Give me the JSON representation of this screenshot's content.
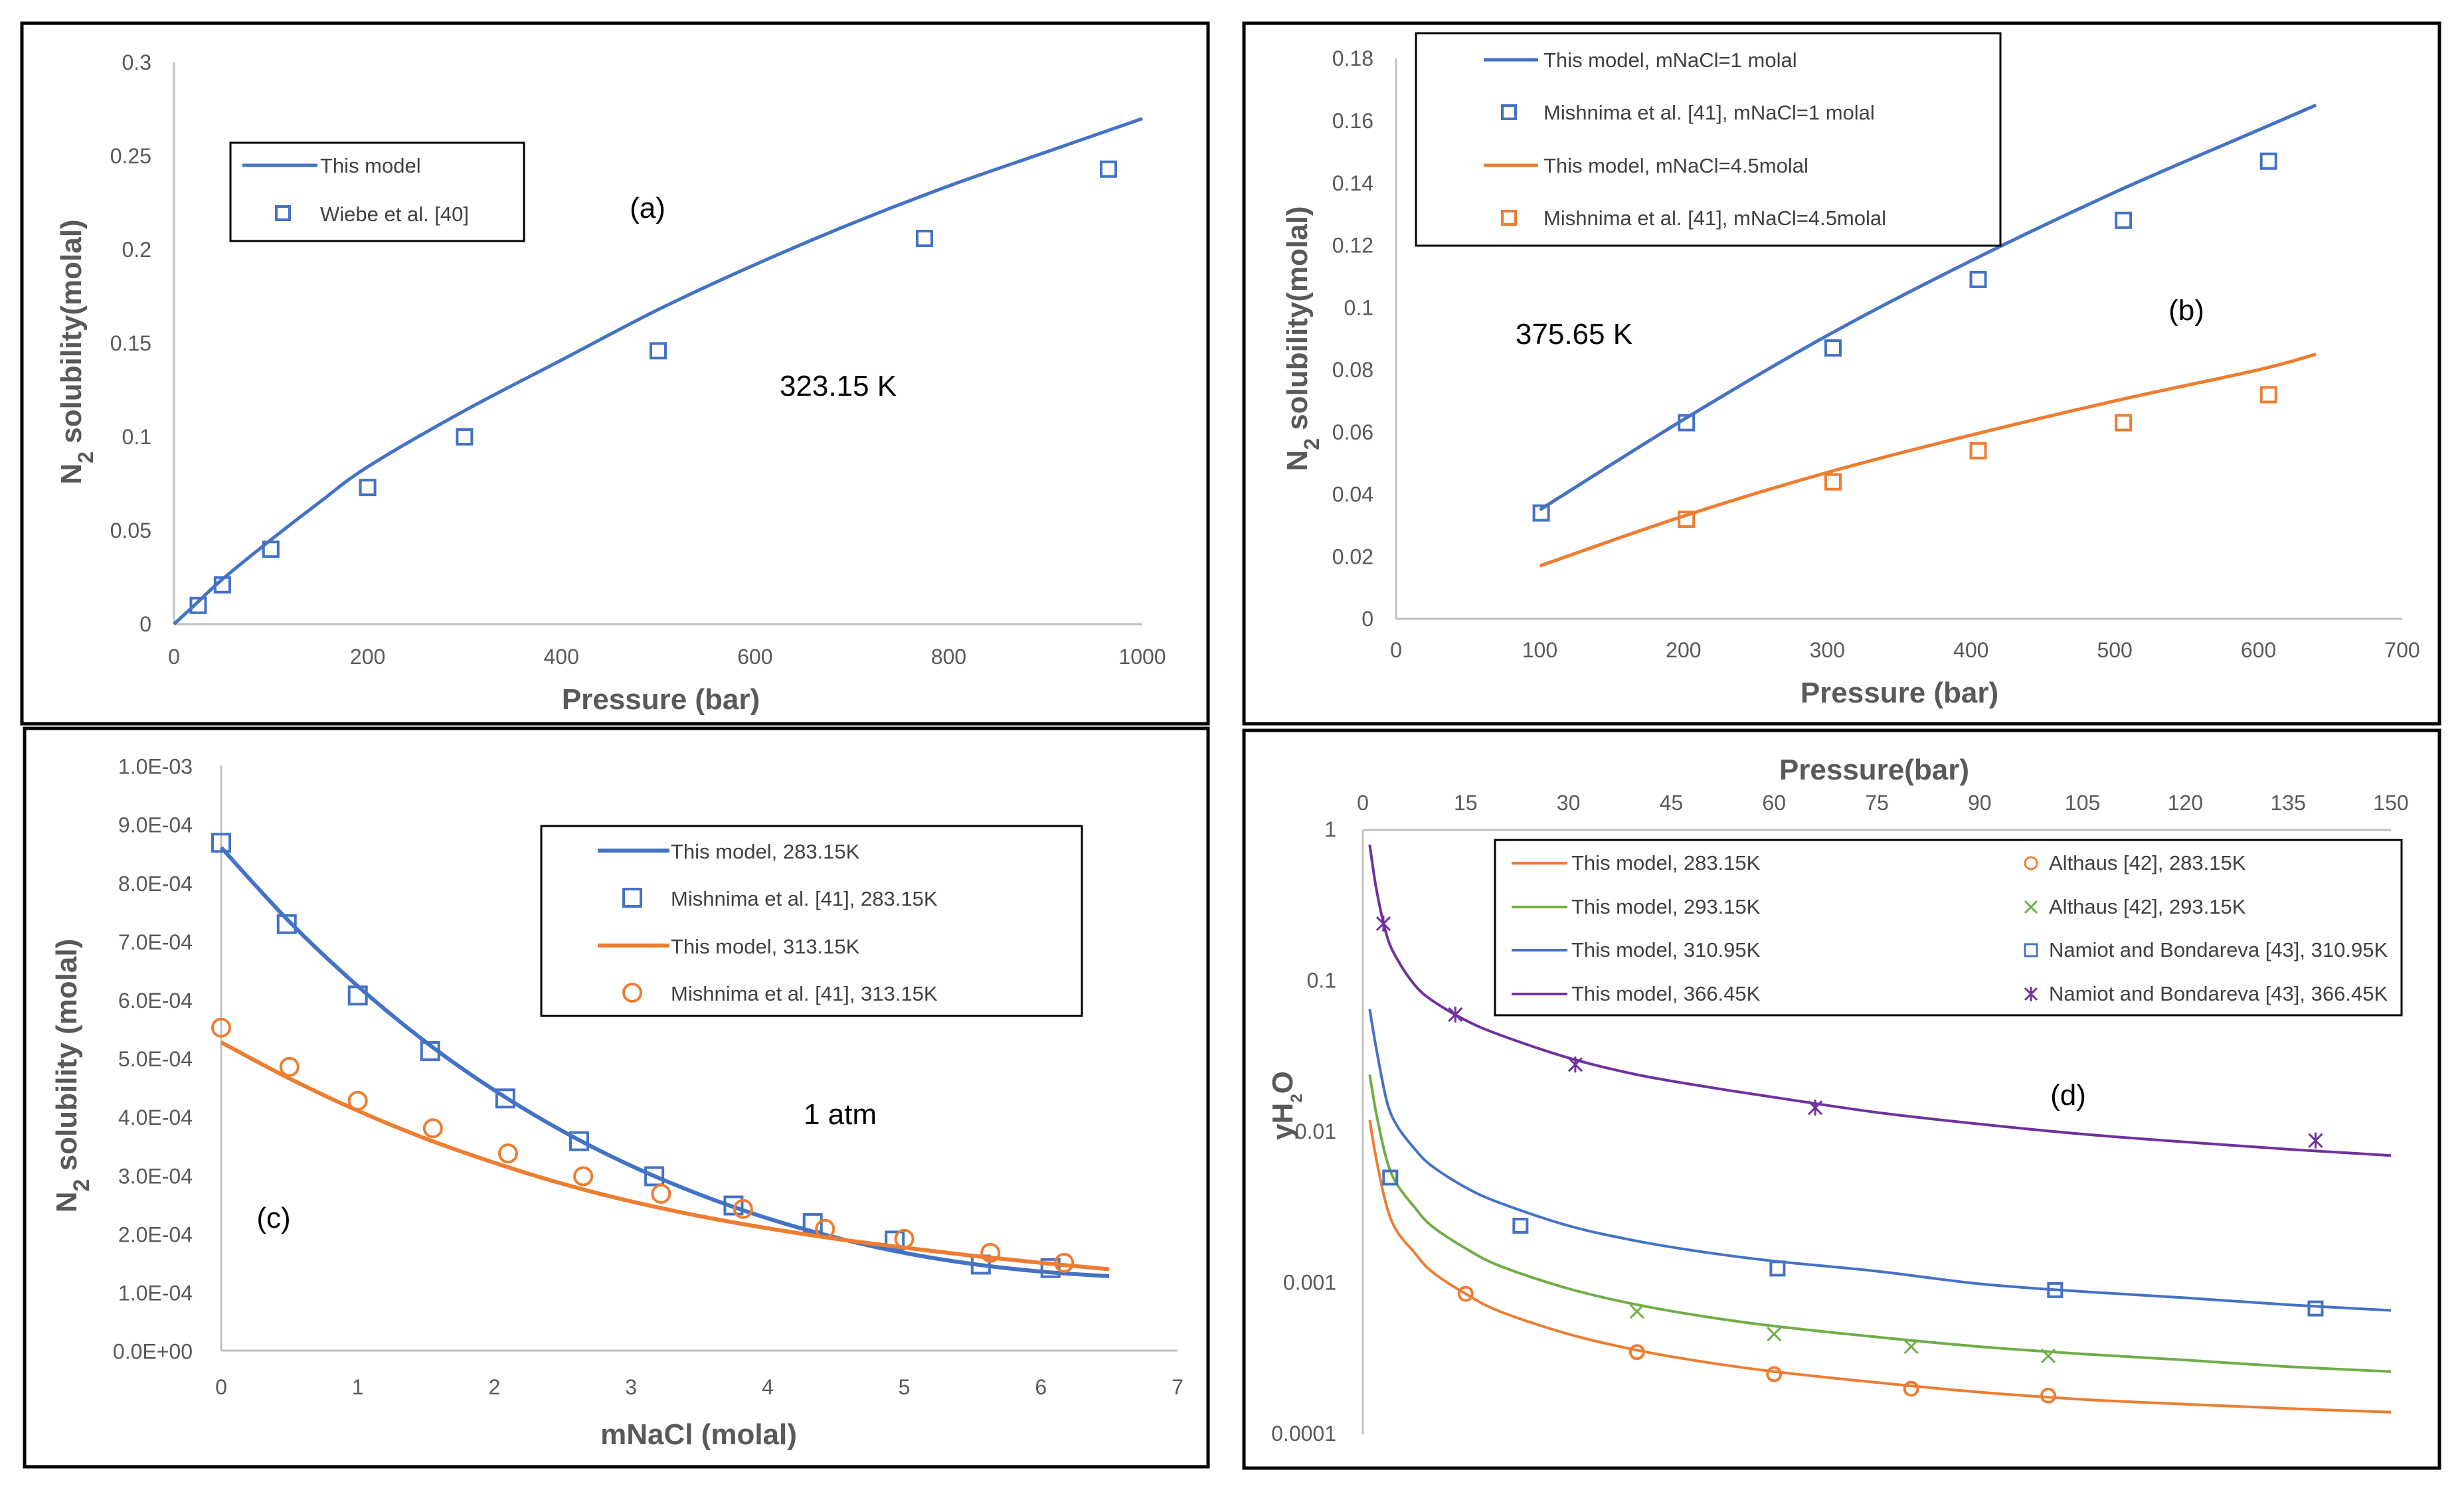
{
  "colors": {
    "blue": "#4472c4",
    "orange": "#ed7d31",
    "green": "#70ad47",
    "purple": "#7030a0",
    "axis": "#bfbfbf",
    "text": "#595959",
    "border": "#000000"
  },
  "chart_data": [
    {
      "id": "a",
      "type": "scatter",
      "panel_label": "(a)",
      "annotation": "323.15 K",
      "xlabel": "Pressure (bar)",
      "ylabel": "N2 solubility(molal)",
      "ylabel_parts": {
        "base": "N",
        "sub": "2",
        "rest": " solubility(molal)"
      },
      "xlim": [
        0,
        1000
      ],
      "ylim": [
        0,
        0.3
      ],
      "x_ticks": [
        0,
        200,
        400,
        600,
        800,
        1000
      ],
      "x_tick_labels": [
        "0",
        "200",
        "400",
        "600",
        "800",
        "1000"
      ],
      "y_ticks": [
        0,
        0.05,
        0.1,
        0.15,
        0.2,
        0.25,
        0.3
      ],
      "y_tick_labels": [
        "0",
        "0.05",
        "0.1",
        "0.15",
        "0.2",
        "0.25",
        "0.3"
      ],
      "legend_position": "top-left",
      "series": [
        {
          "name": "This model",
          "kind": "line",
          "color": "#4472c4",
          "x": [
            0,
            25,
            50,
            100,
            150,
            200,
            300,
            400,
            500,
            600,
            700,
            800,
            900,
            1000
          ],
          "y": [
            0,
            0.012,
            0.024,
            0.045,
            0.065,
            0.084,
            0.114,
            0.141,
            0.168,
            0.192,
            0.214,
            0.234,
            0.252,
            0.27
          ]
        },
        {
          "name": "Wiebe et al. [40]",
          "kind": "marker",
          "marker": "square",
          "color": "#4472c4",
          "x": [
            25,
            50,
            100,
            200,
            300,
            500,
            775,
            965
          ],
          "y": [
            0.01,
            0.021,
            0.04,
            0.073,
            0.1,
            0.146,
            0.206,
            0.243
          ]
        }
      ]
    },
    {
      "id": "b",
      "type": "scatter",
      "panel_label": "(b)",
      "annotation": "375.65 K",
      "xlabel": "Pressure (bar)",
      "ylabel": "N2 solubility(molal)",
      "ylabel_parts": {
        "base": "N",
        "sub": "2",
        "rest": " solubility(molal)"
      },
      "xlim": [
        0,
        700
      ],
      "ylim": [
        0,
        0.18
      ],
      "x_ticks": [
        0,
        100,
        200,
        300,
        400,
        500,
        600,
        700
      ],
      "x_tick_labels": [
        "0",
        "100",
        "200",
        "300",
        "400",
        "500",
        "600",
        "700"
      ],
      "y_ticks": [
        0,
        0.02,
        0.04,
        0.06,
        0.08,
        0.1,
        0.12,
        0.14,
        0.16,
        0.18
      ],
      "y_tick_labels": [
        "0",
        "0.02",
        "0.04",
        "0.06",
        "0.08",
        "0.1",
        "0.12",
        "0.14",
        "0.16",
        "0.18"
      ],
      "legend_position": "top-left",
      "series": [
        {
          "name": "This model, mNaCl=1 molal",
          "kind": "line",
          "color": "#4472c4",
          "x": [
            100,
            200,
            300,
            400,
            500,
            600,
            640
          ],
          "y": [
            0.035,
            0.064,
            0.091,
            0.115,
            0.137,
            0.157,
            0.165
          ]
        },
        {
          "name": "Mishnima et al. [41], mNaCl=1 molal",
          "kind": "marker",
          "marker": "square",
          "color": "#4472c4",
          "x": [
            101,
            202,
            304,
            405,
            506,
            607
          ],
          "y": [
            0.034,
            0.063,
            0.087,
            0.109,
            0.128,
            0.147
          ]
        },
        {
          "name": "This model, mNaCl=4.5molal",
          "kind": "line",
          "color": "#ed7d31",
          "x": [
            100,
            200,
            300,
            400,
            500,
            600,
            640
          ],
          "y": [
            0.017,
            0.033,
            0.047,
            0.059,
            0.07,
            0.08,
            0.085
          ]
        },
        {
          "name": "Mishnima et al. [41], mNaCl=4.5molal",
          "kind": "marker",
          "marker": "square",
          "color": "#ed7d31",
          "x": [
            202,
            304,
            405,
            506,
            607
          ],
          "y": [
            0.032,
            0.044,
            0.054,
            0.063,
            0.072
          ]
        }
      ]
    },
    {
      "id": "c",
      "type": "scatter",
      "panel_label": "(c)",
      "annotation": "1 atm",
      "xlabel": "mNaCl (molal)",
      "ylabel": "N2 solubility (molal)",
      "ylabel_parts": {
        "base": "N",
        "sub": "2",
        "rest": " solubility (molal)"
      },
      "xlim": [
        0,
        7
      ],
      "ylim": [
        0,
        0.001
      ],
      "x_ticks": [
        0,
        1,
        2,
        3,
        4,
        5,
        6,
        7
      ],
      "x_tick_labels": [
        "0",
        "1",
        "2",
        "3",
        "4",
        "5",
        "6",
        "7"
      ],
      "y_ticks": [
        0,
        0.0001,
        0.0002,
        0.0003,
        0.0004,
        0.0005,
        0.0006,
        0.0007,
        0.0008,
        0.0009,
        0.001
      ],
      "y_tick_labels": [
        "0.0E+00",
        "1.0E-04",
        "2.0E-04",
        "3.0E-04",
        "4.0E-04",
        "5.0E-04",
        "6.0E-04",
        "7.0E-04",
        "8.0E-04",
        "9.0E-04",
        "1.0E-03"
      ],
      "legend_position": "top-right",
      "series": [
        {
          "name": "This model, 283.15K",
          "kind": "line",
          "color": "#4472c4",
          "x": [
            0,
            0.5,
            1,
            1.5,
            2,
            2.5,
            3,
            3.5,
            4,
            4.5,
            5,
            5.5,
            6,
            6.5
          ],
          "y": [
            0.00086,
            0.000733,
            0.000623,
            0.000527,
            0.000445,
            0.000375,
            0.000316,
            0.000267,
            0.000226,
            0.000193,
            0.000167,
            0.000148,
            0.000135,
            0.000127
          ]
        },
        {
          "name": "Mishnima et al. [41], 283.15K",
          "kind": "marker",
          "marker": "square",
          "color": "#4472c4",
          "x": [
            0,
            0.48,
            1.0,
            1.53,
            2.08,
            2.62,
            3.17,
            3.75,
            4.33,
            4.93,
            5.56,
            6.07
          ],
          "y": [
            0.000868,
            0.000729,
            0.000607,
            0.000512,
            0.000431,
            0.000358,
            0.000298,
            0.000248,
            0.000218,
            0.000188,
            0.000147,
            0.000141
          ]
        },
        {
          "name": "This model, 313.15K",
          "kind": "line",
          "color": "#ed7d31",
          "x": [
            0,
            0.5,
            1,
            1.5,
            2,
            2.5,
            3,
            3.5,
            4,
            4.5,
            5,
            5.5,
            6,
            6.5
          ],
          "y": [
            0.000527,
            0.000465,
            0.00041,
            0.000362,
            0.000321,
            0.000285,
            0.000255,
            0.00023,
            0.000209,
            0.000191,
            0.000176,
            0.000162,
            0.00015,
            0.000139
          ]
        },
        {
          "name": "Mishnima et al. [41], 313.15K",
          "kind": "marker",
          "marker": "circle",
          "color": "#ed7d31",
          "x": [
            0,
            0.5,
            1.0,
            1.55,
            2.1,
            2.65,
            3.22,
            3.82,
            4.42,
            5.0,
            5.63,
            6.17
          ],
          "y": [
            0.000552,
            0.000485,
            0.000427,
            0.00038,
            0.000337,
            0.000298,
            0.000268,
            0.000242,
            0.000208,
            0.000191,
            0.000167,
            0.00015
          ]
        }
      ]
    },
    {
      "id": "d",
      "type": "scatter",
      "panel_label": "(d)",
      "xlabel": "Pressure(bar)",
      "ylabel": "yH2O",
      "ylabel_parts": {
        "base": "yH",
        "sub": "2",
        "rest": "O"
      },
      "y_scale": "log",
      "xlim": [
        0,
        150
      ],
      "ylim": [
        0.0001,
        1
      ],
      "x_axis_position": "top",
      "x_ticks": [
        0,
        15,
        30,
        45,
        60,
        75,
        90,
        105,
        120,
        135,
        150
      ],
      "x_tick_labels": [
        "0",
        "15",
        "30",
        "45",
        "60",
        "75",
        "90",
        "105",
        "120",
        "135",
        "150"
      ],
      "y_ticks": [
        0.0001,
        0.001,
        0.01,
        0.1,
        1
      ],
      "y_tick_labels": [
        "0.0001",
        "0.001",
        "0.01",
        "0.1",
        "1"
      ],
      "legend_position": "top-right",
      "legend_columns": 2,
      "series": [
        {
          "name": "This model, 283.15K",
          "kind": "line",
          "color": "#ed7d31",
          "x": [
            1,
            2,
            3.5,
            5,
            7.5,
            10,
            15,
            20,
            30,
            40,
            50,
            60,
            75,
            90,
            105,
            120,
            135,
            150
          ],
          "y": [
            0.012,
            0.0065,
            0.0032,
            0.0022,
            0.0016,
            0.0012,
            0.00085,
            0.00065,
            0.00046,
            0.00036,
            0.0003,
            0.00026,
            0.00022,
            0.00019,
            0.00017,
            0.000158,
            0.000148,
            0.00014
          ]
        },
        {
          "name": "This model, 293.15K",
          "kind": "line",
          "color": "#70ad47",
          "x": [
            1,
            2,
            3.5,
            5,
            7.5,
            10,
            15,
            20,
            30,
            40,
            50,
            60,
            75,
            90,
            105,
            120,
            135,
            150
          ],
          "y": [
            0.024,
            0.013,
            0.0065,
            0.0045,
            0.0032,
            0.0024,
            0.0017,
            0.0013,
            0.00092,
            0.00072,
            0.0006,
            0.00052,
            0.00044,
            0.00038,
            0.00034,
            0.00031,
            0.00028,
            0.00026
          ]
        },
        {
          "name": "This model, 310.95K",
          "kind": "line",
          "color": "#4472c4",
          "x": [
            1,
            2,
            3.5,
            5,
            7.5,
            10,
            15,
            20,
            30,
            40,
            50,
            60,
            75,
            90,
            105,
            120,
            135,
            150
          ],
          "y": [
            0.065,
            0.035,
            0.016,
            0.011,
            0.0078,
            0.006,
            0.0043,
            0.0034,
            0.0024,
            0.0019,
            0.0016,
            0.0014,
            0.0012,
            0.00099,
            0.00088,
            0.0008,
            0.00072,
            0.00066
          ]
        },
        {
          "name": "This model, 366.45K",
          "kind": "line",
          "color": "#7030a0",
          "x": [
            1,
            2,
            3.5,
            5,
            7.5,
            10,
            15,
            20,
            30,
            40,
            50,
            60,
            75,
            90,
            105,
            120,
            135,
            150
          ],
          "y": [
            0.8,
            0.4,
            0.2,
            0.14,
            0.095,
            0.075,
            0.055,
            0.044,
            0.031,
            0.024,
            0.02,
            0.017,
            0.0135,
            0.0113,
            0.0097,
            0.0086,
            0.0077,
            0.007
          ]
        },
        {
          "name": "Althaus [42], 283.15K",
          "kind": "marker",
          "marker": "circle",
          "color": "#ed7d31",
          "x": [
            15,
            40,
            60,
            80,
            100
          ],
          "y": [
            0.00085,
            0.00035,
            0.00025,
            0.0002,
            0.00018
          ]
        },
        {
          "name": "Althaus [42], 293.15K",
          "kind": "marker",
          "marker": "x",
          "color": "#70ad47",
          "x": [
            40,
            60,
            80,
            100
          ],
          "y": [
            0.00065,
            0.00046,
            0.00038,
            0.00033
          ]
        },
        {
          "name": "Namiot and Bondareva [43], 310.95K",
          "kind": "marker",
          "marker": "square",
          "color": "#4472c4",
          "x": [
            4,
            23,
            60.5,
            101,
            139
          ],
          "y": [
            0.005,
            0.0024,
            0.00125,
            0.0009,
            0.00068
          ]
        },
        {
          "name": "Namiot and Bondareva [43], 366.45K",
          "kind": "marker",
          "marker": "asterisk",
          "color": "#7030a0",
          "x": [
            3,
            13.5,
            31,
            66,
            139
          ],
          "y": [
            0.24,
            0.06,
            0.028,
            0.0145,
            0.0088
          ]
        }
      ]
    }
  ]
}
